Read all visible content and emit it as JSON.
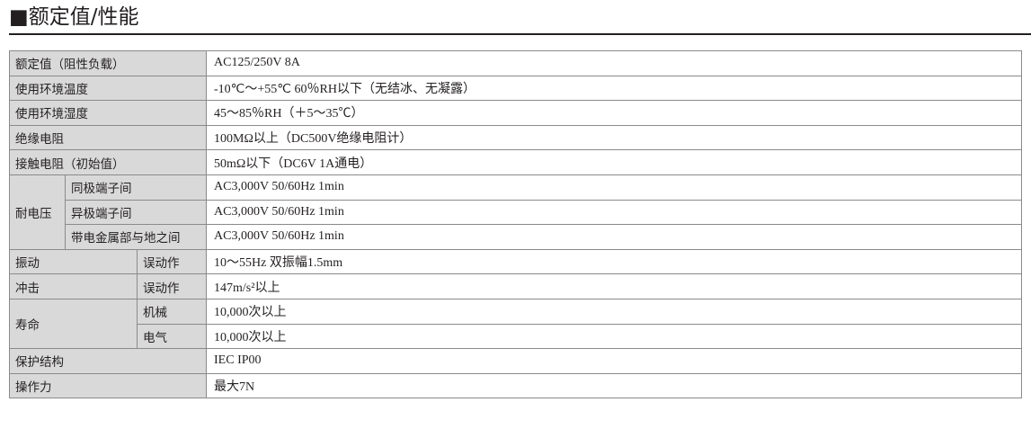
{
  "title": "■额定值/性能",
  "rows": [
    {
      "label": "额定值（阻性负载）",
      "value": "AC125/250V 8A"
    },
    {
      "label": "使用环境温度",
      "value": "-10℃～+55℃ 60％RH以下（无结冰、无凝露）"
    },
    {
      "label": "使用环境湿度",
      "value": "45～85％RH（＋5～35℃）"
    },
    {
      "label": "绝缘电阻",
      "value": "100MΩ以上（DC500V绝缘电阻计）"
    },
    {
      "label": "接触电阻（初始值）",
      "value": "50mΩ以下（DC6V 1A通电）"
    },
    {
      "group": "耐电压",
      "label": "同极端子间",
      "value": "AC3,000V 50/60Hz 1min"
    },
    {
      "label": "异极端子间",
      "value": "AC3,000V 50/60Hz 1min"
    },
    {
      "label": "带电金属部与地之间",
      "value": "AC3,000V 50/60Hz 1min"
    },
    {
      "group": "振动",
      "label": "误动作",
      "value": "10～55Hz 双振幅1.5mm"
    },
    {
      "group": "冲击",
      "label": "误动作",
      "value": "147m/s²以上"
    },
    {
      "group": "寿命",
      "label": "机械",
      "value": "10,000次以上"
    },
    {
      "label": "电气",
      "value": "10,000次以上"
    },
    {
      "label": "保护结构",
      "value": "IEC IP00"
    },
    {
      "label": "操作力",
      "value": "最大7N"
    }
  ]
}
